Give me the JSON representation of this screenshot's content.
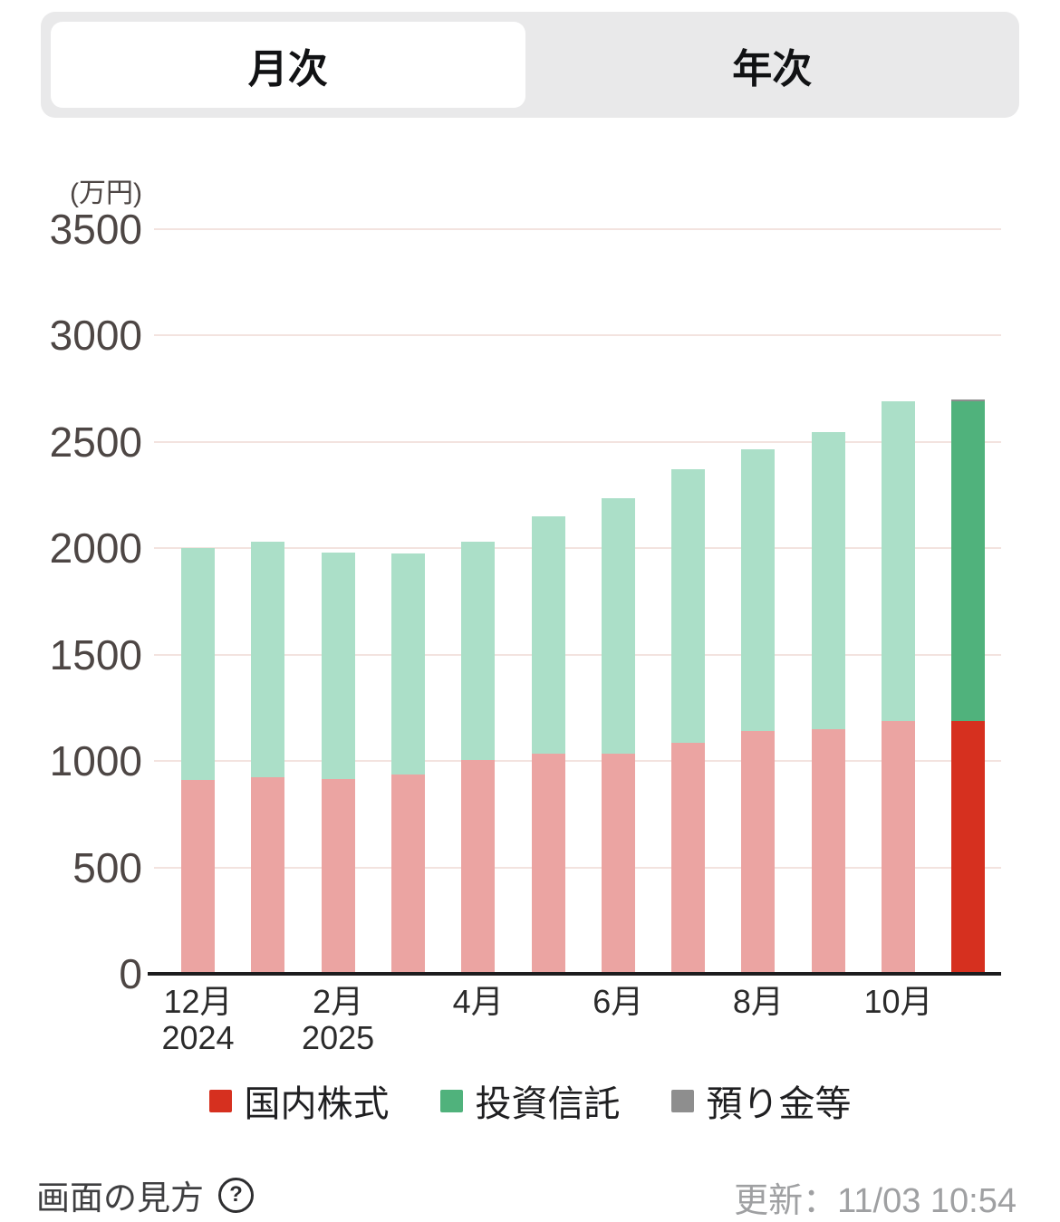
{
  "tab_bar": {
    "tabs": [
      {
        "id": "monthly",
        "label": "月次",
        "selected": true
      },
      {
        "id": "yearly",
        "label": "年次",
        "selected": false
      }
    ]
  },
  "chart_data": {
    "type": "bar",
    "stacked": true,
    "unit_label": "(万円)",
    "ylim": [
      0,
      3500
    ],
    "y_ticks": [
      3500,
      3000,
      2500,
      2000,
      1500,
      1000,
      500,
      0
    ],
    "grid": true,
    "categories": [
      "12月 2024",
      "1月 2025",
      "2月 2025",
      "3月 2025",
      "4月 2025",
      "5月 2025",
      "6月 2025",
      "7月 2025",
      "8月 2025",
      "9月 2025",
      "10月 2025",
      "11月 2025"
    ],
    "x_tick_labels": [
      {
        "index": 0,
        "month": "12月",
        "year": "2024"
      },
      {
        "index": 2,
        "month": "2月",
        "year": "2025"
      },
      {
        "index": 4,
        "month": "4月"
      },
      {
        "index": 6,
        "month": "6月"
      },
      {
        "index": 8,
        "month": "8月"
      },
      {
        "index": 10,
        "month": "10月"
      }
    ],
    "current_index": 11,
    "series": [
      {
        "name": "国内株式",
        "color": "#D6301F",
        "color_past": "#EBA4A2",
        "values": [
          910,
          925,
          915,
          935,
          1005,
          1035,
          1035,
          1085,
          1140,
          1150,
          1190,
          1190
        ]
      },
      {
        "name": "投資信託",
        "color": "#50B27C",
        "color_past": "#ABDFC8",
        "values": [
          1090,
          1105,
          1065,
          1040,
          1025,
          1115,
          1200,
          1285,
          1325,
          1395,
          1500,
          1500
        ]
      },
      {
        "name": "預り金等",
        "color": "#8E8E8E",
        "color_past": "#C9C9C9",
        "values": [
          0,
          0,
          0,
          0,
          0,
          0,
          0,
          0,
          0,
          0,
          0,
          10
        ]
      }
    ],
    "totals": [
      2000,
      2030,
      1980,
      1975,
      2030,
      2150,
      2235,
      2370,
      2465,
      2545,
      2690,
      2700
    ],
    "legend_position": "bottom"
  },
  "legend": {
    "items": [
      {
        "label": "国内株式",
        "color": "#D6301F"
      },
      {
        "label": "投資信託",
        "color": "#50B27C"
      },
      {
        "label": "預り金等",
        "color": "#8E8E8E"
      }
    ]
  },
  "footer": {
    "help_label": "画面の見方",
    "help_icon": "?",
    "updated_text": "更新：11/03 10:54"
  },
  "colors": {
    "grid_line": "#F3E3DF",
    "axis_line": "#1C1C1E",
    "tick_text": "#4D4644",
    "tab_bg": "#E9E9EA"
  }
}
